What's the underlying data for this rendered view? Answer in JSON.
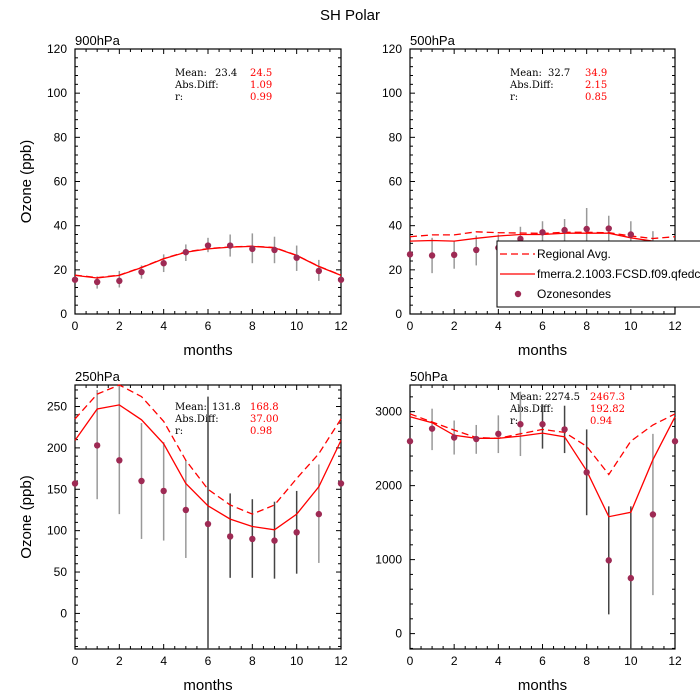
{
  "title": "SH Polar",
  "colors": {
    "model": "#ff0000",
    "obs": "#9e2a54",
    "errorbar": "#555555"
  },
  "legend": {
    "placement": "inside-bottom-right of 500hPa panel",
    "entries": [
      {
        "label": "Regional Avg.",
        "style": "dashed-red"
      },
      {
        "label": "fmerra.2.1003.FCSD.f09.qfedc",
        "style": "solid-red"
      },
      {
        "label": "Ozonesondes",
        "style": "marker"
      }
    ]
  },
  "chart_data": [
    {
      "type": "line",
      "panel_label": "900hPa",
      "xlabel": "months",
      "ylabel": "Ozone (ppb)",
      "xlim": [
        0,
        12
      ],
      "ylim": [
        0,
        120
      ],
      "xticks": [
        0,
        2,
        4,
        6,
        8,
        10,
        12
      ],
      "yticks": [
        0,
        20,
        40,
        60,
        80,
        100,
        120
      ],
      "stats": {
        "mean_label": "Mean:",
        "absdiff_label": "Abs.Diff:",
        "r_label": "r:",
        "obs_mean": "23.4",
        "model_mean": "24.5",
        "absdiff": "1.09",
        "r": "0.99"
      },
      "x": [
        0,
        1,
        2,
        3,
        4,
        5,
        6,
        7,
        8,
        9,
        10,
        11,
        12
      ],
      "series": [
        {
          "name": "Regional Avg.",
          "style": "dashed",
          "values": [
            17.6,
            16.5,
            17.6,
            21.1,
            25.1,
            28.1,
            29.6,
            30.4,
            30.7,
            30.1,
            26.6,
            21.6,
            17.6
          ]
        },
        {
          "name": "fmerra.2.1003.FCSD.f09.qfedc",
          "style": "solid",
          "values": [
            17.5,
            16.3,
            17.5,
            21,
            25,
            28,
            29.5,
            30.3,
            30.6,
            30,
            26.5,
            21.5,
            17.5
          ]
        },
        {
          "name": "Ozonesondes",
          "style": "marker",
          "values": [
            15.5,
            14.5,
            15,
            19,
            23,
            28,
            31,
            31,
            29.5,
            29,
            25.5,
            19.5,
            15.5
          ],
          "err_low": [
            null,
            11.5,
            12,
            16,
            19,
            24,
            28,
            26,
            23,
            23,
            19.5,
            15,
            null
          ],
          "err_high": [
            null,
            17,
            19.5,
            22,
            27,
            31.5,
            34.5,
            36,
            36.5,
            35,
            31,
            24.5,
            null
          ]
        }
      ]
    },
    {
      "type": "line",
      "panel_label": "500hPa",
      "xlabel": "months",
      "ylabel": "",
      "xlim": [
        0,
        12
      ],
      "ylim": [
        0,
        120
      ],
      "xticks": [
        0,
        2,
        4,
        6,
        8,
        10,
        12
      ],
      "yticks": [
        0,
        20,
        40,
        60,
        80,
        100,
        120
      ],
      "stats": {
        "mean_label": "Mean:",
        "absdiff_label": "Abs.Diff:",
        "r_label": "r:",
        "obs_mean": "32.7",
        "model_mean": "34.9",
        "absdiff": "2.15",
        "r": "0.85"
      },
      "x": [
        0,
        1,
        2,
        3,
        4,
        5,
        6,
        7,
        8,
        9,
        10,
        11,
        12
      ],
      "series": [
        {
          "name": "Regional Avg.",
          "style": "dashed",
          "values": [
            35,
            35.8,
            35.8,
            37.2,
            36.8,
            36.7,
            36.5,
            37,
            37,
            36.8,
            35.3,
            34.2,
            35
          ]
        },
        {
          "name": "fmerra.2.1003.FCSD.f09.qfedc",
          "style": "solid",
          "values": [
            33,
            33.3,
            33,
            34.3,
            35.3,
            36,
            36,
            36.6,
            36.6,
            36.6,
            34.5,
            33,
            33
          ]
        },
        {
          "name": "Ozonesondes",
          "style": "marker",
          "values": [
            27,
            26.5,
            26.8,
            29,
            30,
            34,
            37,
            38,
            38.5,
            38.7,
            36,
            31,
            27
          ],
          "err_low": [
            null,
            18.5,
            20.5,
            22,
            24,
            29,
            32,
            33,
            29.5,
            33,
            30,
            25,
            null
          ],
          "err_high": [
            null,
            34.5,
            33,
            35.5,
            36,
            39.5,
            42,
            43,
            48,
            44.5,
            42,
            37.5,
            null
          ]
        }
      ]
    },
    {
      "type": "line",
      "panel_label": "250hPa",
      "xlabel": "months",
      "ylabel": "Ozone (ppb)",
      "xlim": [
        0,
        12
      ],
      "ylim": [
        -43,
        276
      ],
      "xticks": [
        0,
        2,
        4,
        6,
        8,
        10,
        12
      ],
      "yticks": [
        0,
        50,
        100,
        150,
        200,
        250
      ],
      "stats": {
        "mean_label": "Mean:",
        "absdiff_label": "Abs.Diff:",
        "r_label": "r:",
        "obs_mean": "131.8",
        "model_mean": "168.8",
        "absdiff": "37.00",
        "r": "0.98"
      },
      "x": [
        0,
        1,
        2,
        3,
        4,
        5,
        6,
        7,
        8,
        9,
        10,
        11,
        12
      ],
      "series": [
        {
          "name": "Regional Avg.",
          "style": "dashed",
          "values": [
            235,
            265,
            276,
            262,
            232,
            185,
            150,
            131,
            120,
            131,
            163,
            193,
            235
          ]
        },
        {
          "name": "fmerra.2.1003.FCSD.f09.qfedc",
          "style": "solid",
          "values": [
            209,
            247,
            252,
            234,
            205,
            157,
            130,
            114,
            105,
            101,
            120,
            153,
            209
          ]
        },
        {
          "name": "Ozonesondes",
          "style": "marker",
          "values": [
            157,
            203,
            185,
            160,
            148,
            125,
            108,
            93,
            90,
            88,
            98,
            120,
            157
          ],
          "err_low": [
            null,
            138,
            120,
            90,
            88,
            67,
            -45,
            43,
            43,
            42,
            48,
            61,
            null
          ],
          "err_high": [
            null,
            270,
            275,
            230,
            207,
            185,
            262,
            145,
            138,
            135,
            148,
            180,
            null
          ]
        }
      ]
    },
    {
      "type": "line",
      "panel_label": "50hPa",
      "xlabel": "months",
      "ylabel": "",
      "xlim": [
        0,
        12
      ],
      "ylim": [
        -208,
        3360
      ],
      "xticks": [
        0,
        2,
        4,
        6,
        8,
        10,
        12
      ],
      "yticks": [
        0,
        1000,
        2000,
        3000
      ],
      "stats": {
        "mean_label": "Mean:",
        "absdiff_label": "Abs.Diff:",
        "r_label": "r:",
        "obs_mean": "2274.5",
        "model_mean": "2467.3",
        "absdiff": "192.82",
        "r": "0.94"
      },
      "x": [
        0,
        1,
        2,
        3,
        4,
        5,
        6,
        7,
        8,
        9,
        10,
        11,
        12
      ],
      "series": [
        {
          "name": "Regional Avg.",
          "style": "dashed",
          "values": [
            2970,
            2860,
            2750,
            2650,
            2640,
            2700,
            2760,
            2720,
            2530,
            2150,
            2600,
            2820,
            2970
          ]
        },
        {
          "name": "fmerra.2.1003.FCSD.f09.qfedc",
          "style": "solid",
          "values": [
            2930,
            2850,
            2680,
            2640,
            2640,
            2670,
            2710,
            2660,
            2200,
            1580,
            1640,
            2350,
            2930
          ]
        },
        {
          "name": "Ozonesondes",
          "style": "marker",
          "values": [
            2600,
            2770,
            2650,
            2630,
            2700,
            2830,
            2830,
            2760,
            2180,
            990,
            750,
            1610,
            2600
          ],
          "err_low": [
            null,
            2480,
            2420,
            2430,
            2440,
            2400,
            2500,
            2440,
            1600,
            260,
            -210,
            520,
            null
          ],
          "err_high": [
            null,
            3040,
            2880,
            2820,
            2950,
            3270,
            3100,
            3080,
            2760,
            1720,
            1720,
            2700,
            null
          ]
        }
      ]
    }
  ]
}
